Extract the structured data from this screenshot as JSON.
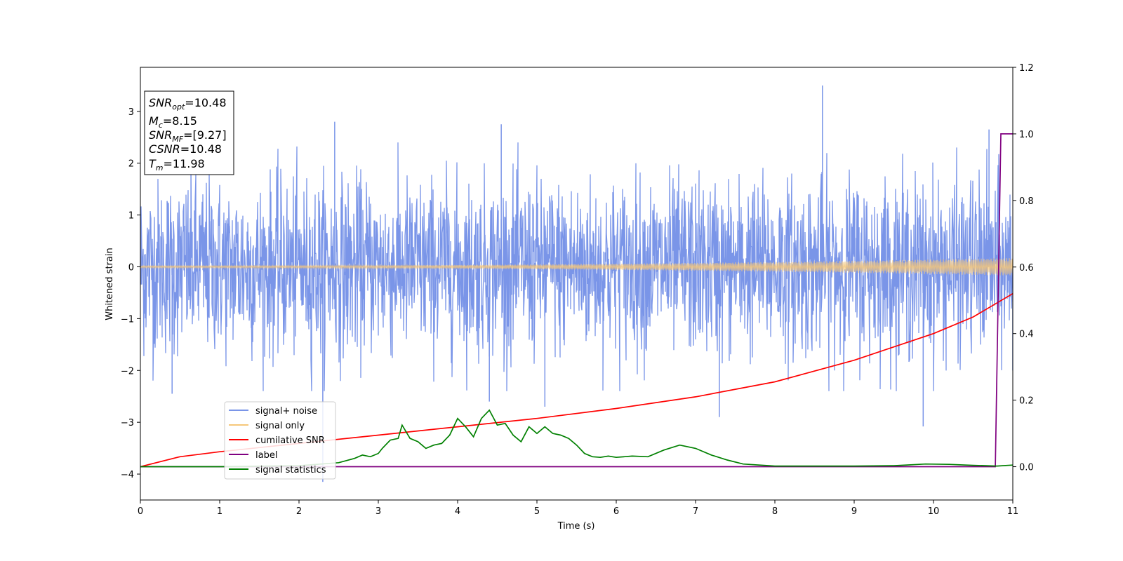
{
  "chart_data": {
    "type": "line",
    "xlabel": "Time (s)",
    "ylabel": "Whitened strain",
    "xlim": [
      0,
      11
    ],
    "ylim": [
      -4.5,
      3.85
    ],
    "ylim_right": [
      -0.1,
      1.2
    ],
    "xticks": [
      "0",
      "1",
      "2",
      "3",
      "4",
      "5",
      "6",
      "7",
      "8",
      "9",
      "10",
      "11"
    ],
    "yticks_left": [
      "−4",
      "−3",
      "−2",
      "−1",
      "0",
      "1",
      "2",
      "3"
    ],
    "yticks_right": [
      "0.0",
      "0.2",
      "0.4",
      "0.6",
      "0.8",
      "1.0",
      "1.2"
    ],
    "yticks_left_values": [
      -4,
      -3,
      -2,
      -1,
      0,
      1,
      2,
      3
    ],
    "yticks_right_values": [
      0,
      0.2,
      0.4,
      0.6,
      0.8,
      1.0,
      1.2
    ],
    "grid": false,
    "legend_position": "lower-left",
    "info_box": {
      "snr_opt": "=10.48",
      "mc": "=8.15",
      "snr_mf": "=[9.27]",
      "csnr": "=10.48",
      "tm": "=11.98"
    },
    "series": [
      {
        "name": "signal+ noise",
        "axis": "left",
        "color": "#7a95e8",
        "kind": "noise",
        "sigma": 0.62,
        "spikes": [
          {
            "x": 0.4,
            "y": -2.45
          },
          {
            "x": 2.3,
            "y": -4.15
          },
          {
            "x": 2.45,
            "y": 2.8
          },
          {
            "x": 4.4,
            "y": -2.6
          },
          {
            "x": 4.55,
            "y": 2.75
          },
          {
            "x": 5.1,
            "y": -2.7
          },
          {
            "x": 7.3,
            "y": -2.9
          },
          {
            "x": 8.6,
            "y": 3.5
          },
          {
            "x": 9.87,
            "y": -3.08
          },
          {
            "x": 10.7,
            "y": 2.65
          },
          {
            "x": 11.0,
            "y": -2.0
          }
        ]
      },
      {
        "name": "signal only",
        "axis": "left",
        "color": "#f5c77a",
        "kind": "chirp",
        "amplitude_start": 0.02,
        "amplitude_end": 0.17
      },
      {
        "name": "cumilative SNR",
        "axis": "right",
        "color": "#ff0000",
        "x": [
          0,
          0.5,
          1,
          2,
          3,
          4,
          5,
          6,
          7,
          8,
          9,
          10,
          10.5,
          11
        ],
        "values": [
          0.0,
          0.03,
          0.045,
          0.07,
          0.095,
          0.12,
          0.145,
          0.175,
          0.21,
          0.255,
          0.32,
          0.4,
          0.45,
          0.52
        ]
      },
      {
        "name": "label",
        "axis": "right",
        "color": "#800080",
        "x": [
          0,
          10.78,
          10.85,
          11
        ],
        "values": [
          0,
          0,
          1.0,
          1.0
        ]
      },
      {
        "name": "signal statistics",
        "axis": "right",
        "color": "#008000",
        "x": [
          0,
          1,
          2,
          2.5,
          2.7,
          2.8,
          2.9,
          3.0,
          3.05,
          3.15,
          3.25,
          3.3,
          3.4,
          3.5,
          3.6,
          3.7,
          3.8,
          3.9,
          4.0,
          4.1,
          4.2,
          4.3,
          4.4,
          4.5,
          4.6,
          4.7,
          4.8,
          4.9,
          5.0,
          5.1,
          5.2,
          5.3,
          5.4,
          5.5,
          5.6,
          5.7,
          5.8,
          5.9,
          6.0,
          6.2,
          6.4,
          6.6,
          6.8,
          7.0,
          7.2,
          7.4,
          7.6,
          8.0,
          9.0,
          9.5,
          9.9,
          10.2,
          10.5,
          10.8,
          11
        ],
        "values": [
          0.0,
          0.0,
          0.003,
          0.012,
          0.025,
          0.035,
          0.03,
          0.04,
          0.055,
          0.08,
          0.085,
          0.125,
          0.085,
          0.075,
          0.055,
          0.065,
          0.07,
          0.095,
          0.145,
          0.12,
          0.09,
          0.145,
          0.17,
          0.125,
          0.13,
          0.095,
          0.075,
          0.12,
          0.1,
          0.12,
          0.1,
          0.095,
          0.085,
          0.065,
          0.04,
          0.03,
          0.028,
          0.032,
          0.028,
          0.032,
          0.03,
          0.05,
          0.065,
          0.055,
          0.035,
          0.02,
          0.008,
          0.002,
          0.002,
          0.003,
          0.008,
          0.007,
          0.004,
          0.002,
          0.005
        ]
      }
    ]
  }
}
